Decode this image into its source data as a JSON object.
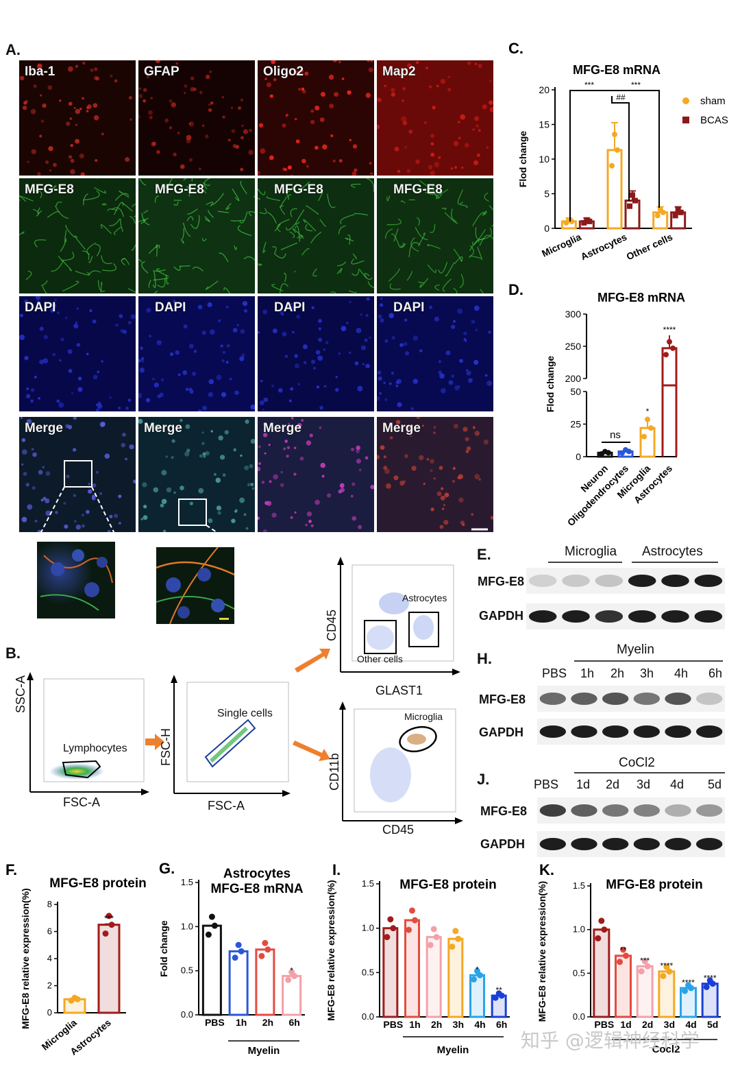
{
  "colors": {
    "sham": "#f4a824",
    "bcas": "#8b1a1a",
    "black": "#111111",
    "blue": "#2a57d6",
    "red": "#e34b3f",
    "pink": "#f4a0a8",
    "orange": "#f4a824",
    "skyblue": "#29a3e8",
    "darkred": "#a01c1c",
    "navy": "#1a3fd6"
  },
  "panelA": {
    "label": "A.",
    "columns": [
      "Iba-1",
      "GFAP",
      "Oligo2",
      "Map2"
    ],
    "row2": "MFG-E8",
    "row3": "DAPI",
    "row4": "Merge"
  },
  "panelB": {
    "label": "B.",
    "plot1": {
      "xlabel": "FSC-A",
      "ylabel": "SSC-A",
      "gate": "Lymphocytes"
    },
    "plot2": {
      "xlabel": "FSC-A",
      "ylabel": "FSC-H",
      "gate": "Single cells"
    },
    "plot3": {
      "xlabel": "GLAST1",
      "ylabel": "CD45",
      "gate1": "Astrocytes",
      "gate2": "Other cells"
    },
    "plot4": {
      "xlabel": "CD45",
      "ylabel": "CD11b",
      "gate": "Microglia"
    }
  },
  "chart_data": [
    {
      "id": "C",
      "type": "bar",
      "label": "C.",
      "title": "MFG-E8 mRNA",
      "ylabel": "Flod change",
      "ylim": [
        0,
        20
      ],
      "yticks": [
        0,
        5,
        10,
        15,
        20
      ],
      "categories": [
        "Microglia",
        "Astrocytes",
        "Other cells"
      ],
      "series": [
        {
          "name": "sham",
          "values": [
            1.0,
            11.3,
            2.3
          ]
        },
        {
          "name": "BCAS",
          "values": [
            1.0,
            4.0,
            2.3
          ]
        }
      ],
      "annotations": [
        "***",
        "##",
        "***"
      ]
    },
    {
      "id": "D",
      "type": "bar",
      "label": "D.",
      "title": "MFG-E8 mRNA",
      "ylabel": "Flod change",
      "yticks_low": [
        0,
        25,
        50
      ],
      "yticks_high": [
        200,
        250,
        300
      ],
      "categories": [
        "Neuron",
        "Oligodendrocytes",
        "Microglia",
        "Astrocytes"
      ],
      "values": [
        3,
        4,
        22,
        247
      ],
      "annotations": [
        "",
        "ns",
        "*",
        "****"
      ]
    },
    {
      "id": "F",
      "type": "bar",
      "label": "F.",
      "title": "MFG-E8 protein",
      "ylabel": "MFG-E8 relative expression(%)",
      "ylim": [
        0,
        8
      ],
      "yticks": [
        0,
        2,
        4,
        6,
        8
      ],
      "categories": [
        "Microglia",
        "Astrocytes"
      ],
      "values": [
        1.0,
        6.5
      ],
      "annotations": [
        "",
        "***"
      ]
    },
    {
      "id": "G",
      "type": "bar",
      "label": "G.",
      "title": "Astrocytes",
      "subtitle": "MFG-E8 mRNA",
      "ylabel": "Fold change",
      "ylim": [
        0,
        1.5
      ],
      "yticks": [
        "0.0",
        "0.5",
        "1.0",
        "1.5"
      ],
      "categories": [
        "PBS",
        "1h",
        "2h",
        "6h"
      ],
      "values": [
        1.01,
        0.72,
        0.74,
        0.44
      ],
      "annotations": [
        "",
        "",
        "",
        "*"
      ],
      "group": "Myelin"
    },
    {
      "id": "I",
      "type": "bar",
      "label": "I.",
      "title": "MFG-E8 protein",
      "ylabel": "MFG-E8 relative expression(%)",
      "ylim": [
        0,
        1.5
      ],
      "yticks": [
        "0.0",
        "0.5",
        "1.0",
        "1.5"
      ],
      "categories": [
        "PBS",
        "1h",
        "2h",
        "3h",
        "4h",
        "6h"
      ],
      "values": [
        1.0,
        1.09,
        0.9,
        0.88,
        0.47,
        0.24
      ],
      "annotations": [
        "",
        "",
        "",
        "",
        "*",
        "**"
      ],
      "group": "Myelin"
    },
    {
      "id": "K",
      "type": "bar",
      "label": "K.",
      "title": "MFG-E8 protein",
      "ylabel": "MFG-E8 relative expression(%)",
      "ylim": [
        0,
        1.5
      ],
      "yticks": [
        "0.0",
        "0.5",
        "1.0",
        "1.5"
      ],
      "categories": [
        "PBS",
        "1d",
        "2d",
        "3d",
        "4d",
        "5d"
      ],
      "values": [
        1.0,
        0.7,
        0.58,
        0.52,
        0.33,
        0.38
      ],
      "annotations": [
        "",
        "**",
        "***",
        "****",
        "****",
        "****"
      ],
      "group": "Cocl2"
    }
  ],
  "panelE": {
    "label": "E.",
    "group1": "Microglia",
    "group2": "Astrocytes",
    "row1": "MFG-E8",
    "row2": "GAPDH"
  },
  "panelH": {
    "label": "H.",
    "group": "Myelin",
    "lanes": [
      "PBS",
      "1h",
      "2h",
      "3h",
      "4h",
      "6h"
    ],
    "row1": "MFG-E8",
    "row2": "GAPDH"
  },
  "panelJ": {
    "label": "J.",
    "group": "CoCl2",
    "lanes": [
      "PBS",
      "1d",
      "2d",
      "3d",
      "4d",
      "5d"
    ],
    "row1": "MFG-E8",
    "row2": "GAPDH"
  },
  "watermark": "知乎 @逻辑神经科学"
}
